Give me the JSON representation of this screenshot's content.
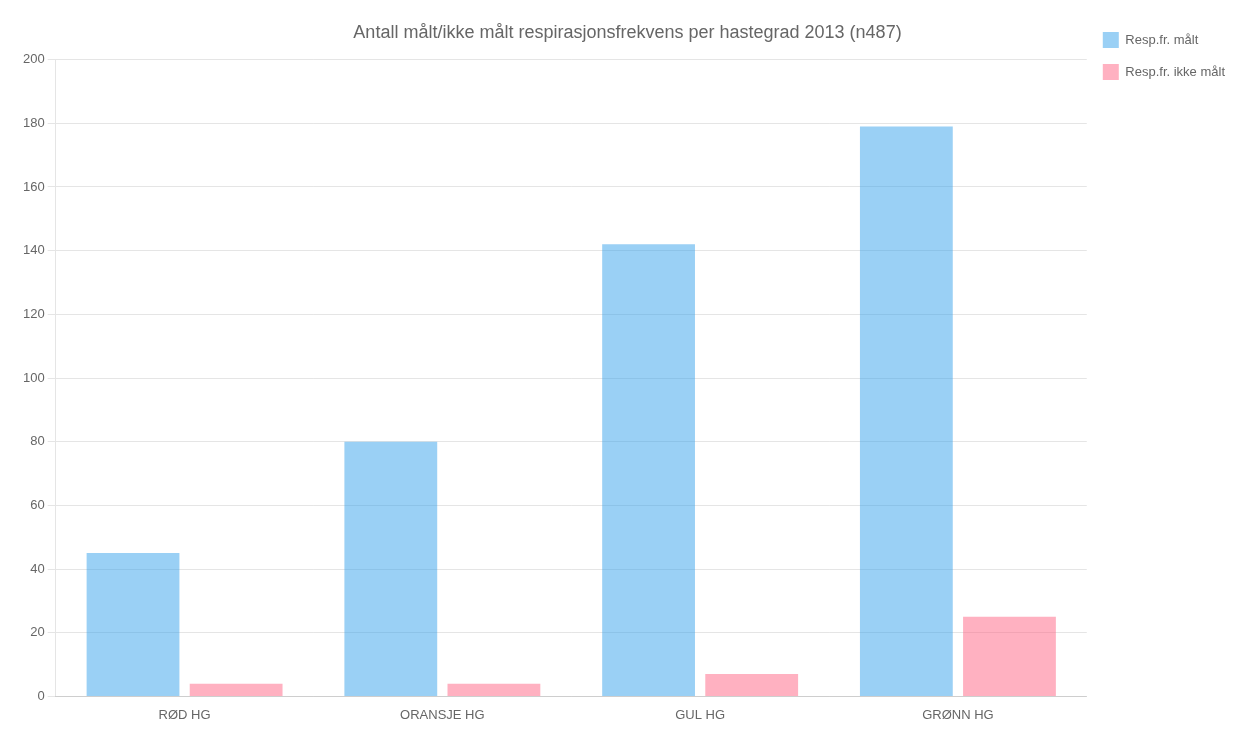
{
  "chart_data": {
    "type": "bar",
    "title": "Antall målt/ikke målt respirasjonsfrekvens per hastegrad 2013 (n487)",
    "categories": [
      "RØD HG",
      "ORANSJE HG",
      "GUL HG",
      "GRØNN HG"
    ],
    "series": [
      {
        "name": "Resp.fr. målt",
        "values": [
          45,
          80,
          142,
          179
        ]
      },
      {
        "name": "Resp.fr. ikke målt",
        "values": [
          4,
          4,
          7,
          25
        ]
      }
    ],
    "ylim": [
      0,
      200
    ],
    "yticks": [
      0,
      20,
      40,
      60,
      80,
      100,
      120,
      140,
      160,
      180,
      200
    ],
    "grid": true,
    "legend": "upper right"
  }
}
